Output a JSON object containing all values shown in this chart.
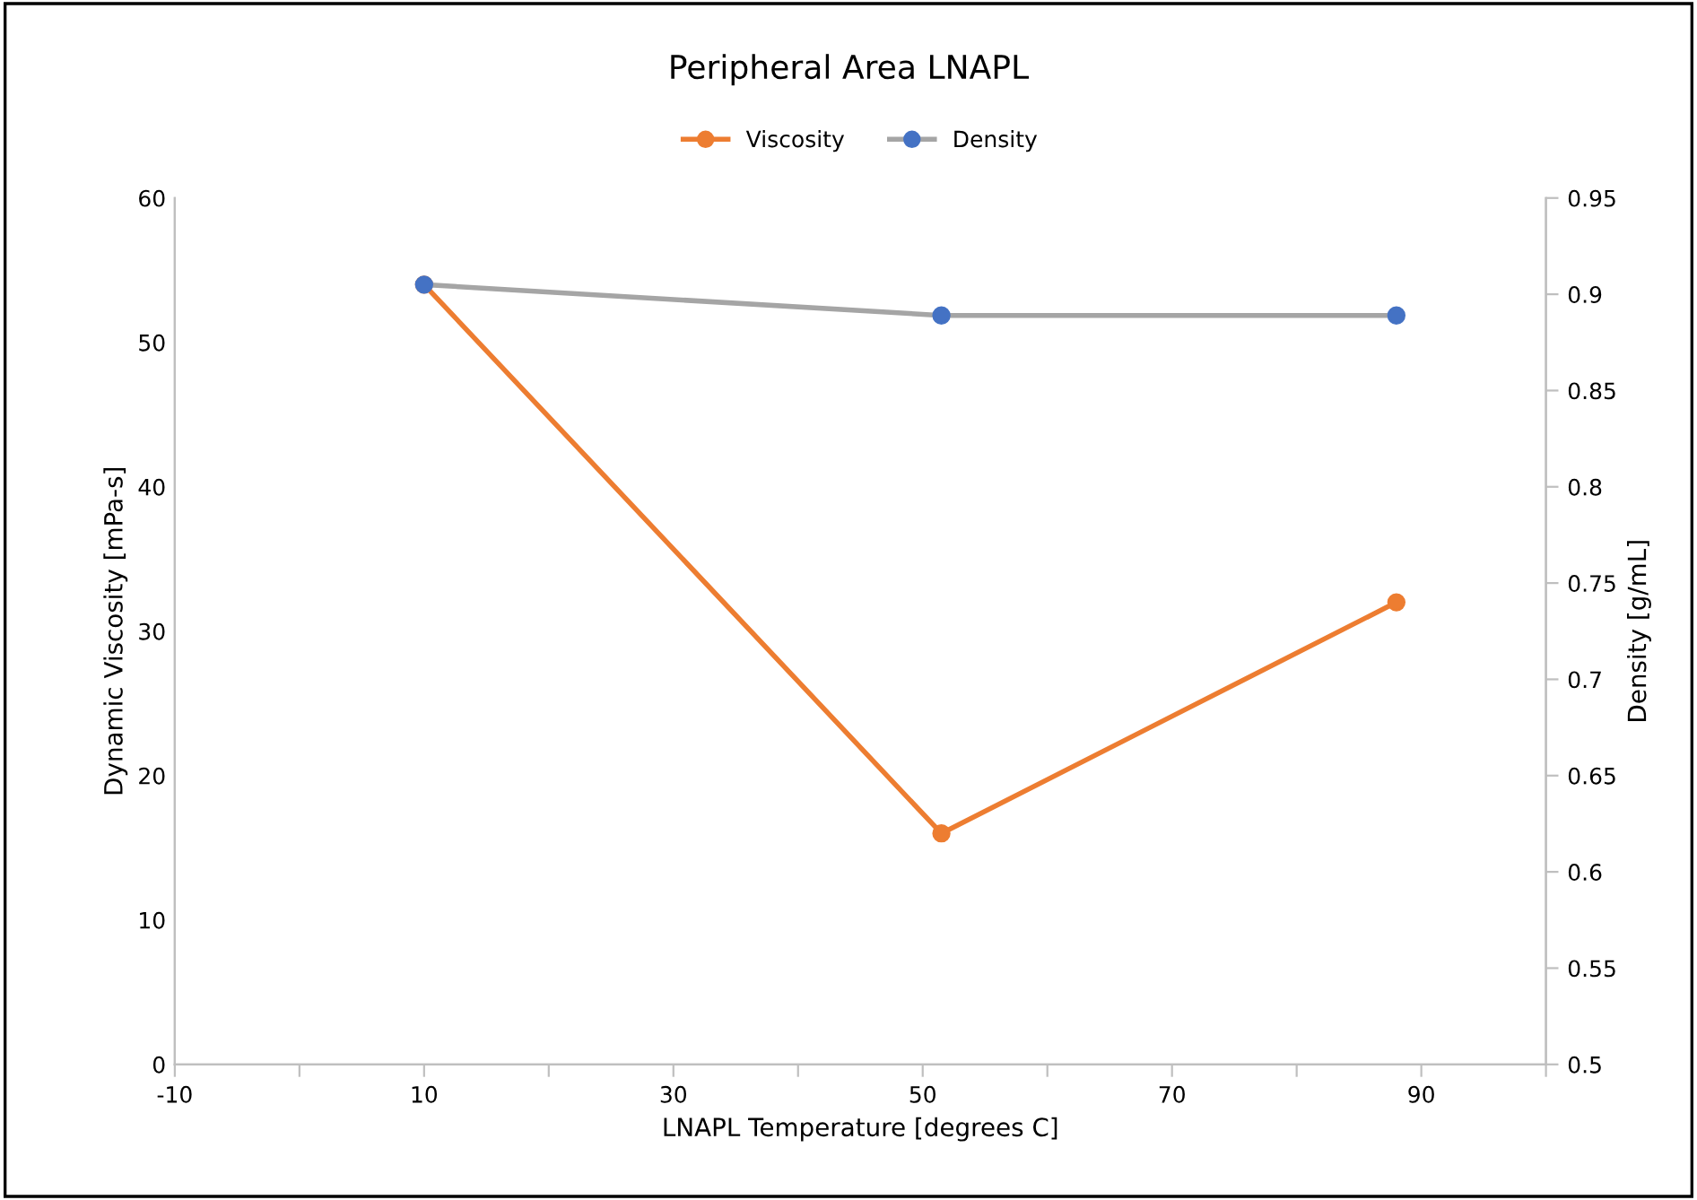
{
  "chart_data": {
    "type": "line",
    "title": "Peripheral Area LNAPL",
    "xlabel": "LNAPL Temperature [degrees C]",
    "ylabel": "Dynamic Viscosity [mPa-s]",
    "y2label": "Density [g/mL]",
    "x": [
      10,
      51.5,
      88
    ],
    "series": [
      {
        "name": "Viscosity",
        "color": "#ed7d31",
        "values": [
          54,
          16,
          32
        ]
      },
      {
        "name": "Density",
        "color": "#a5a5a5",
        "colors": [
          "#4472c4",
          "#4472c4",
          "#4472c4"
        ],
        "axis": "y2",
        "values": [
          0.905,
          0.889,
          0.889
        ]
      }
    ],
    "xlim": [
      -10,
      100
    ],
    "xticks": [
      -10,
      {
        "value": 0,
        "label": null
      },
      10,
      {
        "value": 20,
        "label": null
      },
      30,
      {
        "value": 40,
        "label": null
      },
      50,
      {
        "value": 60,
        "label": null
      },
      70,
      {
        "value": 80,
        "label": null
      },
      90,
      {
        "value": 100,
        "label": null
      }
    ],
    "ylim": [
      0,
      60
    ],
    "yticks": [
      0,
      10,
      20,
      30,
      40,
      50,
      60
    ],
    "y2lim": [
      0.5,
      0.95
    ],
    "y2ticks": [
      0.5,
      0.55,
      0.6,
      0.65,
      0.7,
      0.75,
      0.8,
      0.85,
      0.9,
      0.95
    ],
    "marker": "circle",
    "line_style": "solid",
    "grid": false,
    "legend": "top"
  }
}
